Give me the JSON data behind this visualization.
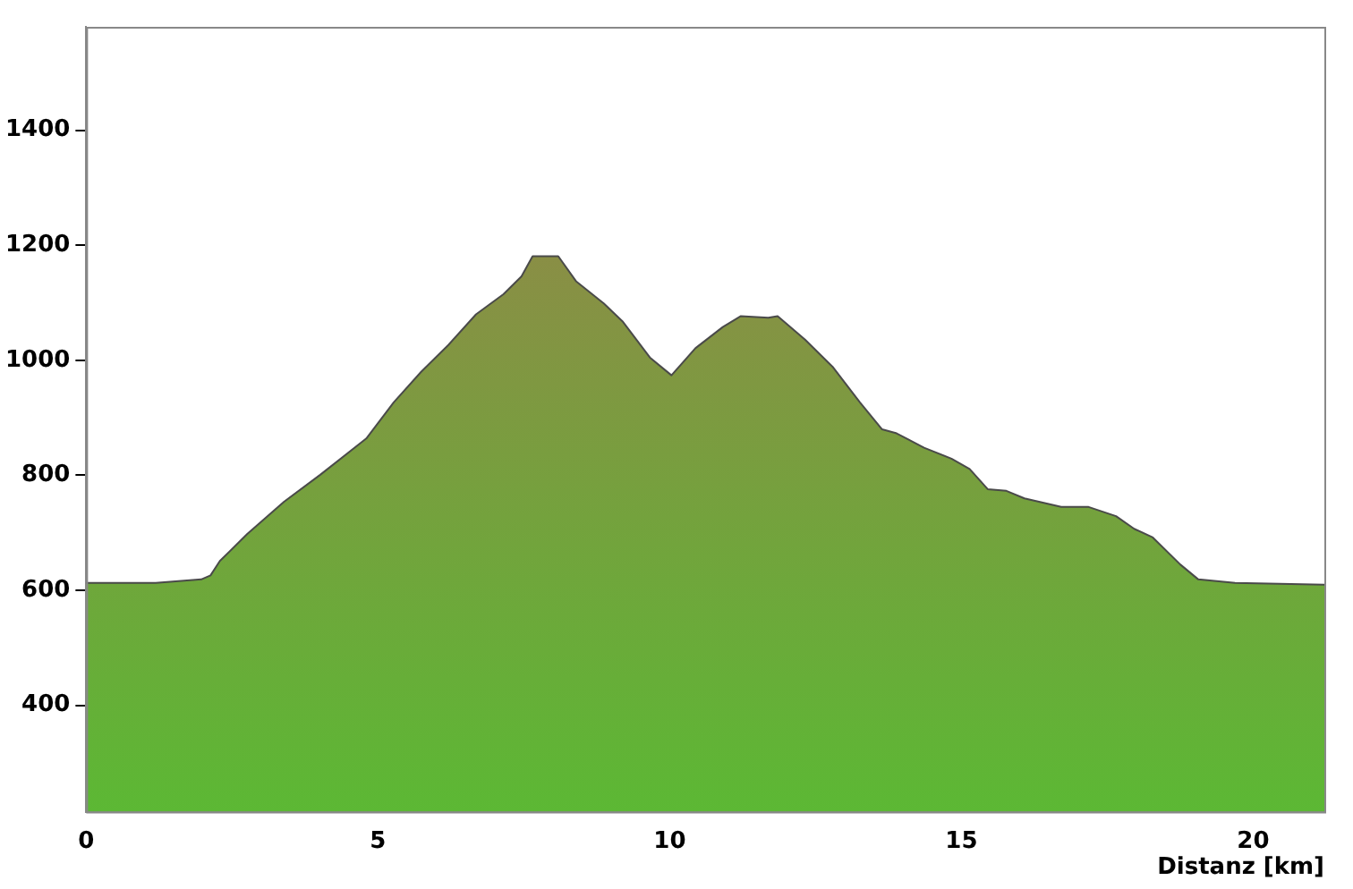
{
  "chart_data": {
    "type": "area",
    "xlabel": "Distanz [km]",
    "x": [
      0,
      1.19,
      1.97,
      2.13,
      2.29,
      2.76,
      3.39,
      4.01,
      4.8,
      5.27,
      5.74,
      6.21,
      6.68,
      7.15,
      7.46,
      7.65,
      8.09,
      8.4,
      8.87,
      9.19,
      9.66,
      10.03,
      10.44,
      10.91,
      11.22,
      11.69,
      11.85,
      12.32,
      12.79,
      13.26,
      13.64,
      13.89,
      14.36,
      14.83,
      15.14,
      15.45,
      15.77,
      16.08,
      16.71,
      17.18,
      17.65,
      17.96,
      18.28,
      18.75,
      19.06,
      19.69,
      21.22
    ],
    "series": [
      {
        "color": "#8c8c46",
        "values": [
          613,
          613,
          619,
          626,
          651,
          698,
          754,
          801,
          864,
          927,
          980,
          1027,
          1080,
          1115,
          1146,
          1181,
          1181,
          1137,
          1099,
          1068,
          1005,
          974,
          1021,
          1058,
          1077,
          1074,
          1077,
          1036,
          989,
          927,
          880,
          873,
          848,
          829,
          811,
          776,
          773,
          760,
          745,
          745,
          729,
          707,
          692,
          645,
          619,
          613,
          610
        ]
      }
    ],
    "xlim": [
      0,
      21.22
    ],
    "xticks": [
      0,
      5,
      10,
      15,
      20
    ],
    "ylim": [
      215,
      1580
    ],
    "yticks": [
      400,
      600,
      800,
      1000,
      1200,
      1400
    ],
    "grid": false,
    "legend": false,
    "marker": "none",
    "line_style": "solid"
  }
}
